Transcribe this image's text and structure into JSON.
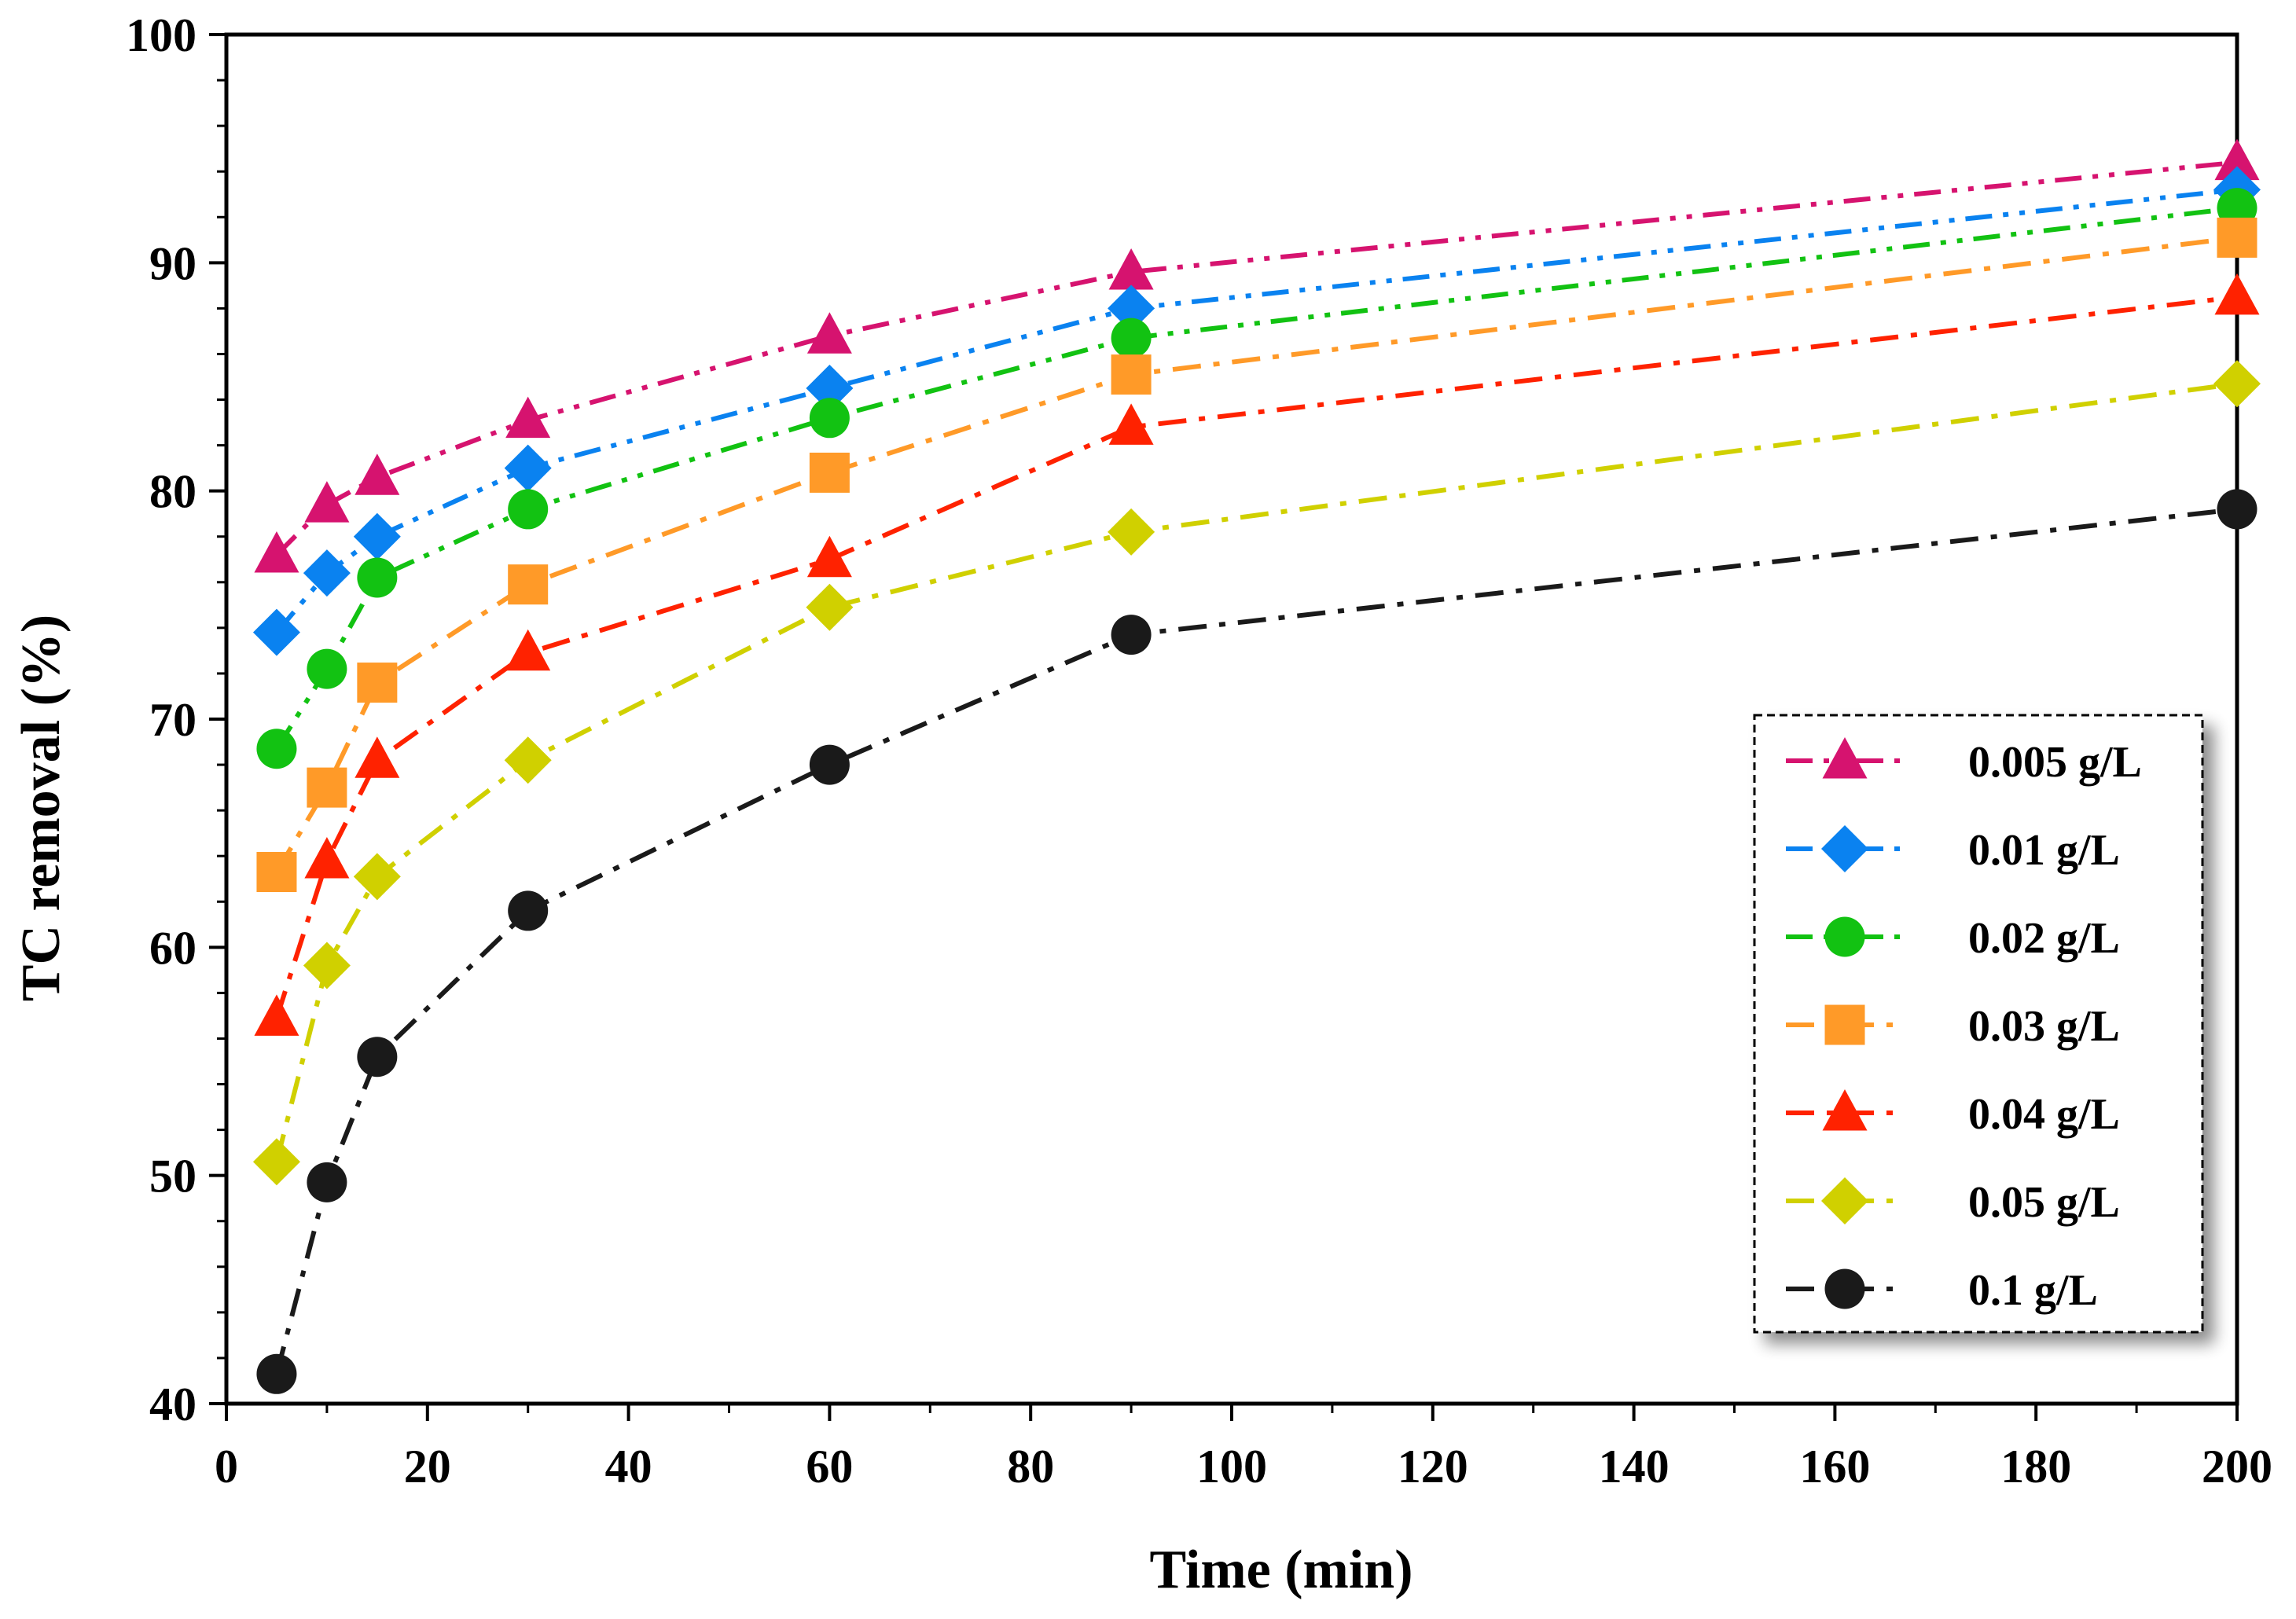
{
  "chart_data": {
    "type": "line",
    "xlabel": "Time (min)",
    "ylabel": "TC removal (%)",
    "xlim": [
      0,
      200
    ],
    "ylim": [
      40,
      100
    ],
    "xticks": [
      "0",
      "20",
      "40",
      "60",
      "80",
      "100",
      "120",
      "140",
      "160",
      "180",
      "200"
    ],
    "yticks": [
      "40",
      "50",
      "60",
      "70",
      "80",
      "90",
      "100"
    ],
    "grid": false,
    "legend_position": "bottom-right",
    "x": [
      5,
      10,
      15,
      30,
      60,
      90,
      200
    ],
    "series": [
      {
        "name": "0.005 g/L",
        "color": "#d6136f",
        "marker": "triangle",
        "dash": "dash-dot-dot",
        "values": [
          77.2,
          79.4,
          80.6,
          83.1,
          86.8,
          89.6,
          94.4
        ]
      },
      {
        "name": "0.01 g/L",
        "color": "#0a82f0",
        "marker": "diamond",
        "dash": "dash-dot-dot",
        "values": [
          73.8,
          76.4,
          78.0,
          81.0,
          84.5,
          88.0,
          93.2
        ]
      },
      {
        "name": "0.02 g/L",
        "color": "#12c212",
        "marker": "circle",
        "dash": "dash-dot-dot",
        "values": [
          68.7,
          72.2,
          76.2,
          79.2,
          83.2,
          86.7,
          92.4
        ]
      },
      {
        "name": "0.03 g/L",
        "color": "#ff9a28",
        "marker": "square",
        "dash": "dash-dot",
        "values": [
          63.3,
          67.0,
          71.6,
          75.9,
          80.8,
          85.1,
          91.1
        ]
      },
      {
        "name": "0.04 g/L",
        "color": "#ff2200",
        "marker": "triangle",
        "dash": "dash-dot",
        "values": [
          56.9,
          63.8,
          68.2,
          72.9,
          77.0,
          82.8,
          88.5
        ]
      },
      {
        "name": "0.05 g/L",
        "color": "#d0d000",
        "marker": "diamond",
        "dash": "dash-dot",
        "values": [
          50.6,
          59.2,
          63.1,
          68.2,
          74.9,
          78.2,
          84.7
        ]
      },
      {
        "name": "0.1 g/L",
        "color": "#1a1a1a",
        "marker": "circle",
        "dash": "dash-dot",
        "values": [
          41.3,
          49.7,
          55.2,
          61.6,
          68.0,
          73.7,
          79.2
        ]
      }
    ]
  }
}
